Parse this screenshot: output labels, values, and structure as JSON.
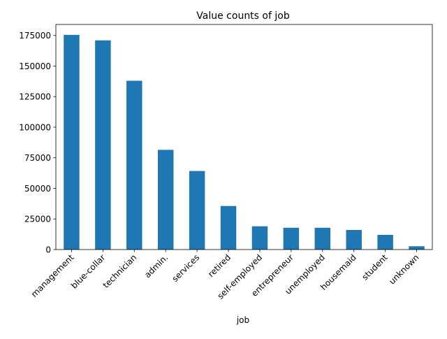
{
  "chart_data": {
    "type": "bar",
    "title": "Value counts of job",
    "xlabel": "job",
    "ylabel": "",
    "categories": [
      "management",
      "blue-collar",
      "technician",
      "admin.",
      "services",
      "retired",
      "self-employed",
      "entrepreneur",
      "unemployed",
      "housemaid",
      "student",
      "unknown"
    ],
    "values": [
      175500,
      171000,
      138000,
      81500,
      64200,
      35600,
      19000,
      17800,
      17800,
      16000,
      12000,
      2700
    ],
    "ylim": [
      0,
      184000
    ],
    "yticks": [
      0,
      25000,
      50000,
      75000,
      100000,
      125000,
      150000,
      175000
    ],
    "bar_color": "#1f77b4",
    "grid": false,
    "legend": false
  }
}
